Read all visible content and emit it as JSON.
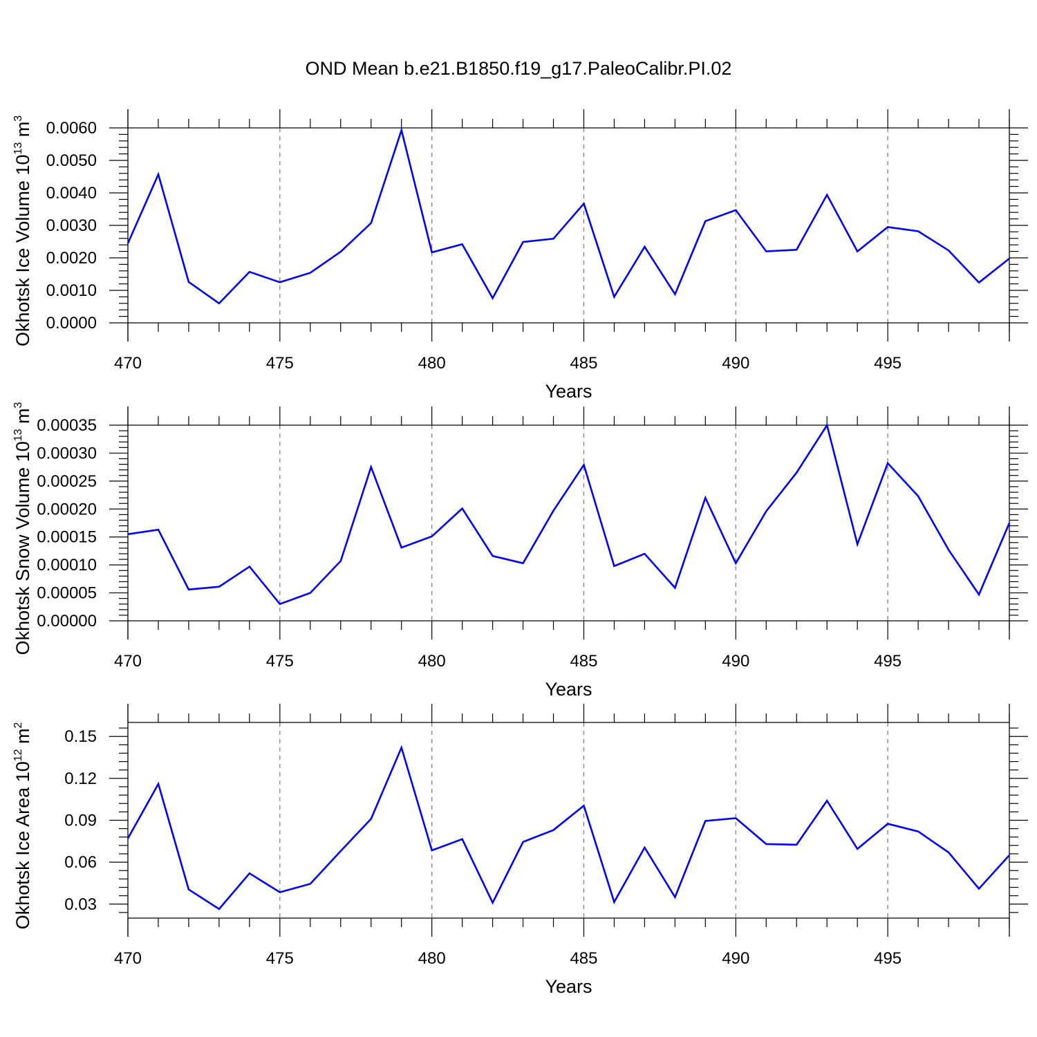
{
  "chart_data": {
    "type": "line",
    "title": "OND Mean b.e21.B1850.f19_g17.PaleoCalibr.PI.02",
    "x": [
      470,
      471,
      472,
      473,
      474,
      475,
      476,
      477,
      478,
      479,
      480,
      481,
      482,
      483,
      484,
      485,
      486,
      487,
      488,
      489,
      490,
      491,
      492,
      493,
      494,
      495,
      496,
      497,
      498,
      499
    ],
    "panels": [
      {
        "name": "ice-volume",
        "ylabel_main": "Okhotsk Ice Volume 10",
        "ylabel_exp": "13",
        "ylabel_unit": " m",
        "ylabel_unit_exp": "3",
        "xlabel": "Years",
        "xlim": [
          470,
          499
        ],
        "ylim": [
          0,
          0.006
        ],
        "yticks": [
          0,
          0.001,
          0.002,
          0.003,
          0.004,
          0.005,
          0.006
        ],
        "ytick_labels": [
          "0.0000",
          "0.0010",
          "0.0020",
          "0.0030",
          "0.0040",
          "0.0050",
          "0.0060"
        ],
        "xticks": [
          470,
          475,
          480,
          485,
          490,
          495
        ],
        "xtick_labels": [
          "470",
          "475",
          "480",
          "485",
          "490",
          "495"
        ],
        "series": [
          {
            "name": "Okhotsk Ice Volume",
            "color": "#0000ff",
            "values": [
              0.00245,
              0.00457,
              0.00126,
              0.0006,
              0.00157,
              0.00125,
              0.00154,
              0.00219,
              0.00307,
              0.00593,
              0.00217,
              0.00242,
              0.00076,
              0.00249,
              0.00259,
              0.00367,
              0.0008,
              0.00234,
              0.00088,
              0.00313,
              0.00347,
              0.0022,
              0.00225,
              0.00394,
              0.0022,
              0.00295,
              0.00282,
              0.00223,
              0.00124,
              0.00198
            ]
          }
        ]
      },
      {
        "name": "snow-volume",
        "ylabel_main": "Okhotsk Snow Volume 10",
        "ylabel_exp": "13",
        "ylabel_unit": " m",
        "ylabel_unit_exp": "3",
        "xlabel": "Years",
        "xlim": [
          470,
          499
        ],
        "ylim": [
          0,
          0.00035
        ],
        "yticks": [
          0,
          5e-05,
          0.0001,
          0.00015,
          0.0002,
          0.00025,
          0.0003,
          0.00035
        ],
        "ytick_labels": [
          "0.00000",
          "0.00005",
          "0.00010",
          "0.00015",
          "0.00020",
          "0.00025",
          "0.00030",
          "0.00035"
        ],
        "xticks": [
          470,
          475,
          480,
          485,
          490,
          495
        ],
        "xtick_labels": [
          "470",
          "475",
          "480",
          "485",
          "490",
          "495"
        ],
        "series": [
          {
            "name": "Okhotsk Snow Volume",
            "color": "#0000ff",
            "values": [
              0.000155,
              0.000163,
              5.6e-05,
              6.1e-05,
              9.7e-05,
              3e-05,
              5e-05,
              0.000107,
              0.000275,
              0.000131,
              0.000151,
              0.000201,
              0.000116,
              0.000103,
              0.000197,
              0.000279,
              9.8e-05,
              0.00012,
              5.9e-05,
              0.00022,
              0.000103,
              0.000196,
              0.000265,
              0.00035,
              0.000137,
              0.000282,
              0.000223,
              0.000127,
              4.7e-05,
              0.000175
            ]
          }
        ]
      },
      {
        "name": "ice-area",
        "ylabel_main": "Okhotsk Ice Area 10",
        "ylabel_exp": "12",
        "ylabel_unit": " m",
        "ylabel_unit_exp": "2",
        "xlabel": "Years",
        "xlim": [
          470,
          499
        ],
        "ylim": [
          0.02,
          0.16
        ],
        "yticks": [
          0.03,
          0.06,
          0.09,
          0.12,
          0.15
        ],
        "ytick_labels": [
          "0.03",
          "0.06",
          "0.09",
          "0.12",
          "0.15"
        ],
        "xticks": [
          470,
          475,
          480,
          485,
          490,
          495
        ],
        "xtick_labels": [
          "470",
          "475",
          "480",
          "485",
          "490",
          "495"
        ],
        "series": [
          {
            "name": "Okhotsk Ice Area",
            "color": "#0000ff",
            "values": [
              0.077,
              0.116,
              0.0405,
              0.0265,
              0.052,
              0.0385,
              0.0445,
              0.068,
              0.091,
              0.142,
              0.0685,
              0.0765,
              0.031,
              0.0745,
              0.083,
              0.1005,
              0.0315,
              0.0705,
              0.035,
              0.0895,
              0.0915,
              0.073,
              0.0725,
              0.104,
              0.0695,
              0.0875,
              0.082,
              0.067,
              0.041,
              0.065
            ]
          }
        ]
      }
    ]
  }
}
